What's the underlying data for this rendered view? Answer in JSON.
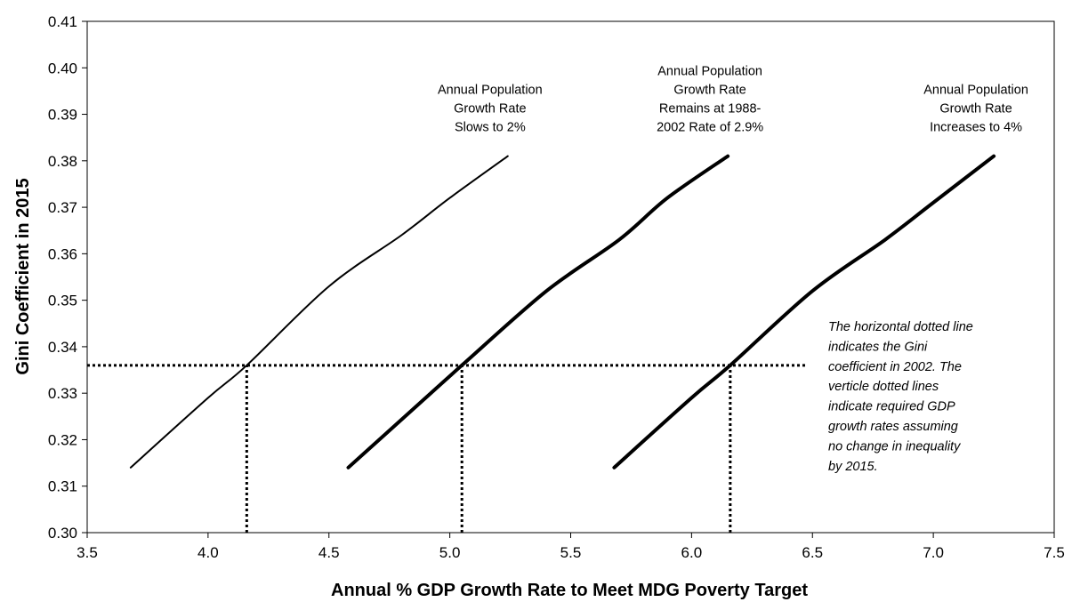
{
  "chart_data": {
    "type": "line",
    "title": "",
    "xlabel": "Annual % GDP Growth Rate to Meet MDG Poverty Target",
    "ylabel": "Gini Coefficient in 2015",
    "xlim": [
      3.5,
      7.5
    ],
    "ylim": [
      0.3,
      0.41
    ],
    "xticks": [
      "3.5",
      "4.0",
      "4.5",
      "5.0",
      "5.5",
      "6.0",
      "6.5",
      "7.0",
      "7.5"
    ],
    "yticks": [
      "0.30",
      "0.31",
      "0.32",
      "0.33",
      "0.34",
      "0.35",
      "0.36",
      "0.37",
      "0.38",
      "0.39",
      "0.40",
      "0.41"
    ],
    "grid": false,
    "legend": "none",
    "series": [
      {
        "label_lines": [
          "Annual Population",
          "Growth Rate",
          "Slows to 2%"
        ],
        "color": "#000000",
        "weight": "thin",
        "x": [
          3.68,
          4.0,
          4.16,
          4.5,
          4.8,
          5.0,
          5.24
        ],
        "y": [
          0.314,
          0.329,
          0.336,
          0.353,
          0.364,
          0.372,
          0.381
        ]
      },
      {
        "label_lines": [
          "Annual Population",
          "Growth Rate",
          "Remains at 1988-",
          "2002 Rate of 2.9%"
        ],
        "color": "#000000",
        "weight": "thick",
        "x": [
          4.58,
          4.9,
          5.05,
          5.4,
          5.7,
          5.9,
          6.15
        ],
        "y": [
          0.314,
          0.329,
          0.336,
          0.352,
          0.363,
          0.372,
          0.381
        ]
      },
      {
        "label_lines": [
          "Annual Population",
          "Growth Rate",
          "Increases to 4%"
        ],
        "color": "#000000",
        "weight": "thick",
        "x": [
          5.68,
          6.0,
          6.16,
          6.5,
          6.8,
          7.0,
          7.25
        ],
        "y": [
          0.314,
          0.329,
          0.336,
          0.352,
          0.363,
          0.371,
          0.381
        ]
      }
    ],
    "reference_lines": {
      "horizontal": {
        "y": 0.336,
        "x_from": 3.5,
        "x_to": 6.48,
        "style": "dotted"
      },
      "vertical": [
        {
          "x": 4.16,
          "y_from": 0.3,
          "y_to": 0.336,
          "style": "dotted"
        },
        {
          "x": 5.05,
          "y_from": 0.3,
          "y_to": 0.336,
          "style": "dotted"
        },
        {
          "x": 6.16,
          "y_from": 0.3,
          "y_to": 0.336,
          "style": "dotted"
        }
      ]
    },
    "annotation_lines": [
      "The horizontal dotted line",
      "indicates the Gini",
      "coefficient in 2002. The",
      "verticle dotted lines",
      "indicate required GDP",
      "growth rates assuming",
      "no change in inequality",
      "by 2015."
    ]
  }
}
